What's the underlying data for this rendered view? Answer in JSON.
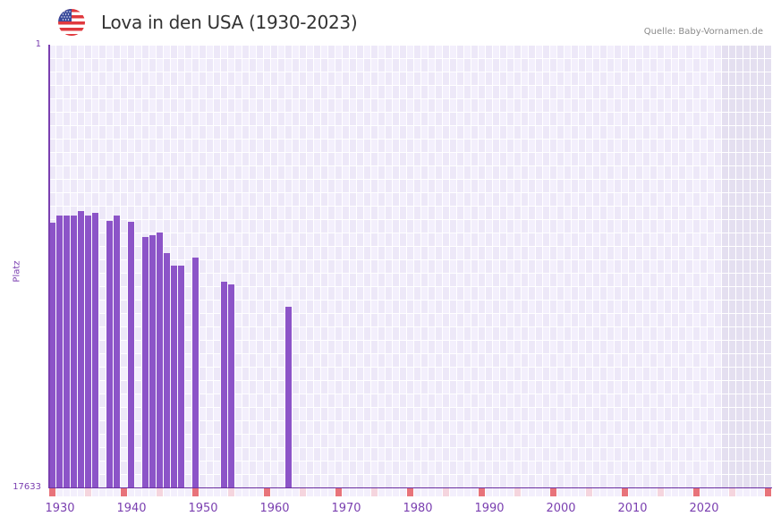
{
  "header": {
    "title": "Lova in den USA (1930-2023)",
    "source": "Quelle: Baby-Vornamen.de",
    "flag_icon": "usa-flag-icon"
  },
  "colors": {
    "bar": "#8c54c8",
    "axis": "#7a3fb0",
    "grid_light": "#f3effc",
    "grid_alt": "#ede8f8",
    "future_shade": "#e4dff0",
    "decade_marker": "#e8737a",
    "half_decade_marker": "#f5d5de"
  },
  "chart_data": {
    "type": "bar",
    "title": "Lova in den USA (1930-2023)",
    "xlabel": "",
    "ylabel": "Platz",
    "y_inverted": true,
    "ylim": [
      17633,
      1
    ],
    "y_ticks": [
      "1",
      "17633"
    ],
    "x_ticks": [
      "1930",
      "1940",
      "1950",
      "1960",
      "1970",
      "1980",
      "1990",
      "2000",
      "2010",
      "2020"
    ],
    "x_range": [
      1928,
      2028
    ],
    "grid": true,
    "legend": null,
    "categories": [
      1928,
      1929,
      1930,
      1931,
      1932,
      1933,
      1934,
      1936,
      1937,
      1939,
      1941,
      1942,
      1943,
      1944,
      1945,
      1946,
      1948,
      1952,
      1953,
      1961
    ],
    "values": [
      7100,
      6820,
      6820,
      6820,
      6610,
      6820,
      6710,
      7030,
      6820,
      7060,
      7670,
      7600,
      7490,
      8310,
      8800,
      8800,
      8490,
      9450,
      9560,
      10450
    ],
    "series": [
      {
        "name": "Platz",
        "values": [
          7100,
          6820,
          6820,
          6820,
          6610,
          6820,
          6710,
          7030,
          6820,
          7060,
          7670,
          7600,
          7490,
          8310,
          8800,
          8800,
          8490,
          9450,
          9560,
          10450
        ]
      }
    ]
  },
  "axis": {
    "ylabel": "Platz",
    "ytick_top": "1",
    "ytick_bottom": "17633",
    "xticks": [
      "1930",
      "1940",
      "1950",
      "1960",
      "1970",
      "1980",
      "1990",
      "2000",
      "2010",
      "2020"
    ]
  }
}
